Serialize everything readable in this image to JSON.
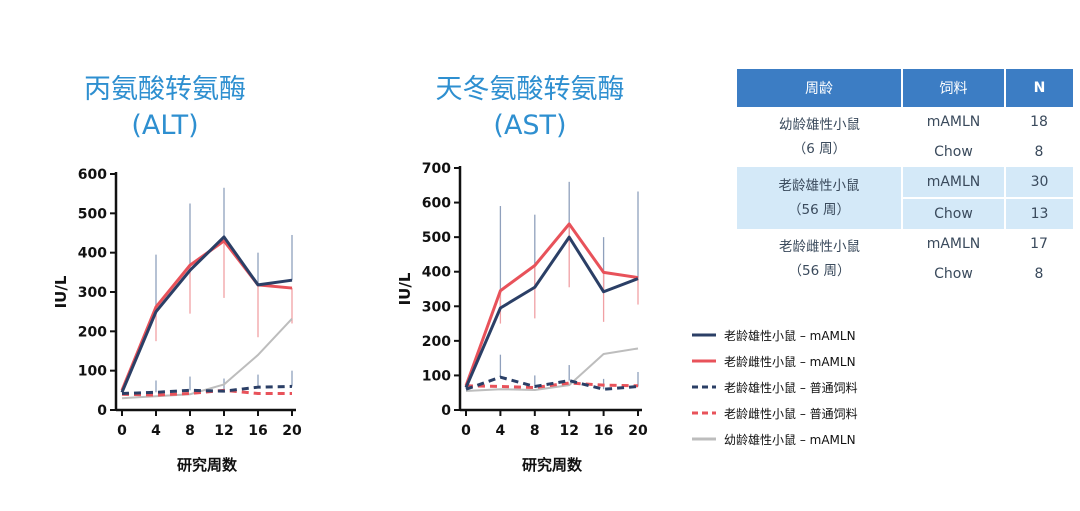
{
  "charts": {
    "alt": {
      "title_line1": "丙氨酸转氨酶",
      "title_line2": "(ALT)"
    },
    "ast": {
      "title_line1": "天冬氨酸转氨酶",
      "title_line2": "(AST)"
    }
  },
  "colors": {
    "old_male_mamln": "#2b3f66",
    "old_female_mamln": "#e8525a",
    "old_male_chow": "#2b3f66",
    "old_female_chow": "#e8525a",
    "young_male_mamln": "#bdbdbd",
    "error_bar_navy": "#8fa0bc",
    "error_bar_red": "#f0a0a4",
    "title_blue": "#2e8fd0",
    "table_header": "#3c7dc4",
    "table_highlight": "#d4e9f8"
  },
  "chart_data": [
    {
      "type": "line",
      "id": "alt",
      "title": "丙氨酸转氨酶 (ALT)",
      "xlabel": "研究周数",
      "ylabel": "IU/L",
      "x": [
        0,
        4,
        8,
        12,
        16,
        20
      ],
      "xticks": [
        "0",
        "4",
        "8",
        "12",
        "16",
        "20"
      ],
      "yticks": [
        "0",
        "100",
        "200",
        "300",
        "400",
        "500",
        "600"
      ],
      "ylim": [
        0,
        600
      ],
      "series": [
        {
          "name": "老龄雄性小鼠 – mAMLN",
          "key": "old_male_mamln",
          "dash": false,
          "values": [
            45,
            250,
            355,
            440,
            318,
            330
          ],
          "err_upper": [
            null,
            395,
            525,
            565,
            400,
            445
          ],
          "err_lower": [
            null,
            null,
            null,
            null,
            null,
            null
          ]
        },
        {
          "name": "老龄雌性小鼠 – mAMLN",
          "key": "old_female_mamln",
          "dash": false,
          "values": [
            50,
            262,
            368,
            430,
            318,
            310
          ],
          "err_upper": [
            null,
            null,
            null,
            null,
            null,
            null
          ],
          "err_lower": [
            null,
            175,
            245,
            285,
            185,
            220
          ]
        },
        {
          "name": "老龄雄性小鼠 – 普通饲料",
          "key": "old_male_chow",
          "dash": true,
          "values": [
            42,
            45,
            50,
            48,
            58,
            60
          ],
          "err_upper": [
            null,
            75,
            85,
            80,
            90,
            100
          ],
          "err_lower": [
            null,
            null,
            null,
            null,
            null,
            null
          ]
        },
        {
          "name": "老龄雌性小鼠 – 普通饲料",
          "key": "old_female_chow",
          "dash": true,
          "values": [
            40,
            38,
            42,
            50,
            42,
            42
          ],
          "err_upper": [
            null,
            null,
            null,
            null,
            null,
            null
          ],
          "err_lower": [
            null,
            null,
            null,
            null,
            null,
            null
          ]
        },
        {
          "name": "幼龄雄性小鼠 – mAMLN",
          "key": "young_male_mamln",
          "dash": false,
          "values": [
            30,
            35,
            40,
            65,
            140,
            232
          ],
          "err_upper": [
            null,
            null,
            null,
            null,
            null,
            null
          ],
          "err_lower": [
            null,
            null,
            null,
            null,
            null,
            null
          ]
        }
      ]
    },
    {
      "type": "line",
      "id": "ast",
      "title": "天冬氨酸转氨酶 (AST)",
      "xlabel": "研究周数",
      "ylabel": "IU/L",
      "x": [
        0,
        4,
        8,
        12,
        16,
        20
      ],
      "xticks": [
        "0",
        "4",
        "8",
        "12",
        "16",
        "20"
      ],
      "yticks": [
        "0",
        "100",
        "200",
        "300",
        "400",
        "500",
        "600",
        "700"
      ],
      "ylim": [
        0,
        700
      ],
      "series": [
        {
          "name": "老龄雄性小鼠 – mAMLN",
          "key": "old_male_mamln",
          "dash": false,
          "values": [
            65,
            295,
            355,
            500,
            342,
            380
          ],
          "err_upper": [
            null,
            590,
            565,
            660,
            500,
            632
          ],
          "err_lower": [
            null,
            null,
            null,
            null,
            null,
            null
          ]
        },
        {
          "name": "老龄雌性小鼠 – mAMLN",
          "key": "old_female_mamln",
          "dash": false,
          "values": [
            70,
            345,
            418,
            538,
            398,
            383
          ],
          "err_upper": [
            null,
            null,
            null,
            null,
            null,
            null
          ],
          "err_lower": [
            null,
            250,
            265,
            355,
            255,
            305
          ]
        },
        {
          "name": "老龄雄性小鼠 – 普通饲料",
          "key": "old_male_chow",
          "dash": true,
          "values": [
            60,
            95,
            68,
            85,
            60,
            68
          ],
          "err_upper": [
            null,
            160,
            100,
            130,
            90,
            110
          ],
          "err_lower": [
            null,
            null,
            null,
            null,
            null,
            null
          ]
        },
        {
          "name": "老龄雌性小鼠 – 普通饲料",
          "key": "old_female_chow",
          "dash": true,
          "values": [
            70,
            68,
            65,
            78,
            72,
            70
          ],
          "err_upper": [
            null,
            null,
            null,
            null,
            null,
            null
          ],
          "err_lower": [
            null,
            null,
            null,
            null,
            null,
            null
          ]
        },
        {
          "name": "幼龄雄性小鼠 – mAMLN",
          "key": "young_male_mamln",
          "dash": false,
          "values": [
            55,
            60,
            58,
            72,
            162,
            178
          ],
          "err_upper": [
            null,
            null,
            null,
            null,
            null,
            null
          ],
          "err_lower": [
            null,
            null,
            null,
            null,
            null,
            null
          ]
        }
      ]
    }
  ],
  "legend": [
    {
      "label": "老龄雄性小鼠 – mAMLN",
      "key": "old_male_mamln",
      "dash": false
    },
    {
      "label": "老龄雌性小鼠 – mAMLN",
      "key": "old_female_mamln",
      "dash": false
    },
    {
      "label": "老龄雄性小鼠 – 普通饲料",
      "key": "old_male_chow",
      "dash": true
    },
    {
      "label": "老龄雌性小鼠 – 普通饲料",
      "key": "old_female_chow",
      "dash": true
    },
    {
      "label": "幼龄雄性小鼠 – mAMLN",
      "key": "young_male_mamln",
      "dash": false
    }
  ],
  "table": {
    "headers": [
      "周龄",
      "饲料",
      "N"
    ],
    "groups": [
      {
        "name_line1": "幼龄雄性小鼠",
        "name_line2": "（6 周）",
        "rows": [
          {
            "diet": "mAMLN",
            "n": "18"
          },
          {
            "diet": "Chow",
            "n": "8"
          }
        ]
      },
      {
        "name_line1": "老龄雄性小鼠",
        "name_line2": "（56 周）",
        "rows": [
          {
            "diet": "mAMLN",
            "n": "30"
          },
          {
            "diet": "Chow",
            "n": "13"
          }
        ]
      },
      {
        "name_line1": "老龄雌性小鼠",
        "name_line2": "（56 周）",
        "rows": [
          {
            "diet": "mAMLN",
            "n": "17"
          },
          {
            "diet": "Chow",
            "n": "8"
          }
        ]
      }
    ]
  }
}
